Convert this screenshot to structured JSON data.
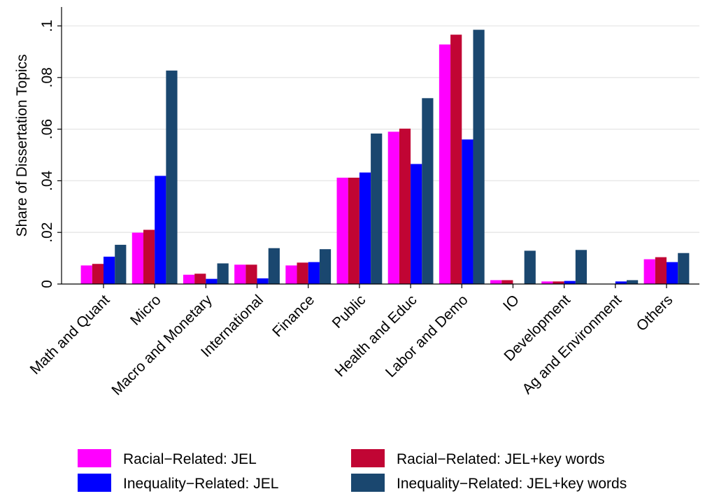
{
  "chart_data": {
    "type": "bar",
    "title": "",
    "xlabel": "",
    "ylabel": "Share of Dissertation Topics",
    "ylim": [
      0,
      0.1
    ],
    "yticks": [
      0,
      0.02,
      0.04,
      0.06,
      0.08,
      0.1
    ],
    "ytick_labels": [
      "0",
      ".02",
      ".04",
      ".06",
      ".08",
      ".1"
    ],
    "grid": true,
    "legend_position": "bottom",
    "categories": [
      "Math and Quant",
      "Micro",
      "Macro and Monetary",
      "International",
      "Finance",
      "Public",
      "Health and Educ",
      "Labor and Demo",
      "IO",
      "Development",
      "Ag and Environment",
      "Others"
    ],
    "series": [
      {
        "name": "Racial−Related: JEL",
        "color": "#ff00ff",
        "values": [
          0.0072,
          0.0199,
          0.0036,
          0.0075,
          0.0072,
          0.0412,
          0.059,
          0.0928,
          0.0015,
          0.001,
          0.0,
          0.0096
        ]
      },
      {
        "name": "Racial−Related: JEL+key words",
        "color": "#c10534",
        "values": [
          0.0078,
          0.021,
          0.004,
          0.0075,
          0.0083,
          0.0412,
          0.0602,
          0.0966,
          0.0015,
          0.001,
          0.0,
          0.0104
        ]
      },
      {
        "name": "Inequality−Related: JEL",
        "color": "#0000ff",
        "values": [
          0.0106,
          0.0419,
          0.002,
          0.0022,
          0.0085,
          0.0432,
          0.0465,
          0.056,
          0.0,
          0.0012,
          0.001,
          0.0085
        ]
      },
      {
        "name": "Inequality−Related: JEL+key words",
        "color": "#1a476f",
        "values": [
          0.0152,
          0.0827,
          0.008,
          0.0139,
          0.0135,
          0.0583,
          0.072,
          0.0985,
          0.0129,
          0.0132,
          0.0015,
          0.012
        ]
      }
    ],
    "legend_order": [
      0,
      1,
      2,
      3
    ]
  }
}
